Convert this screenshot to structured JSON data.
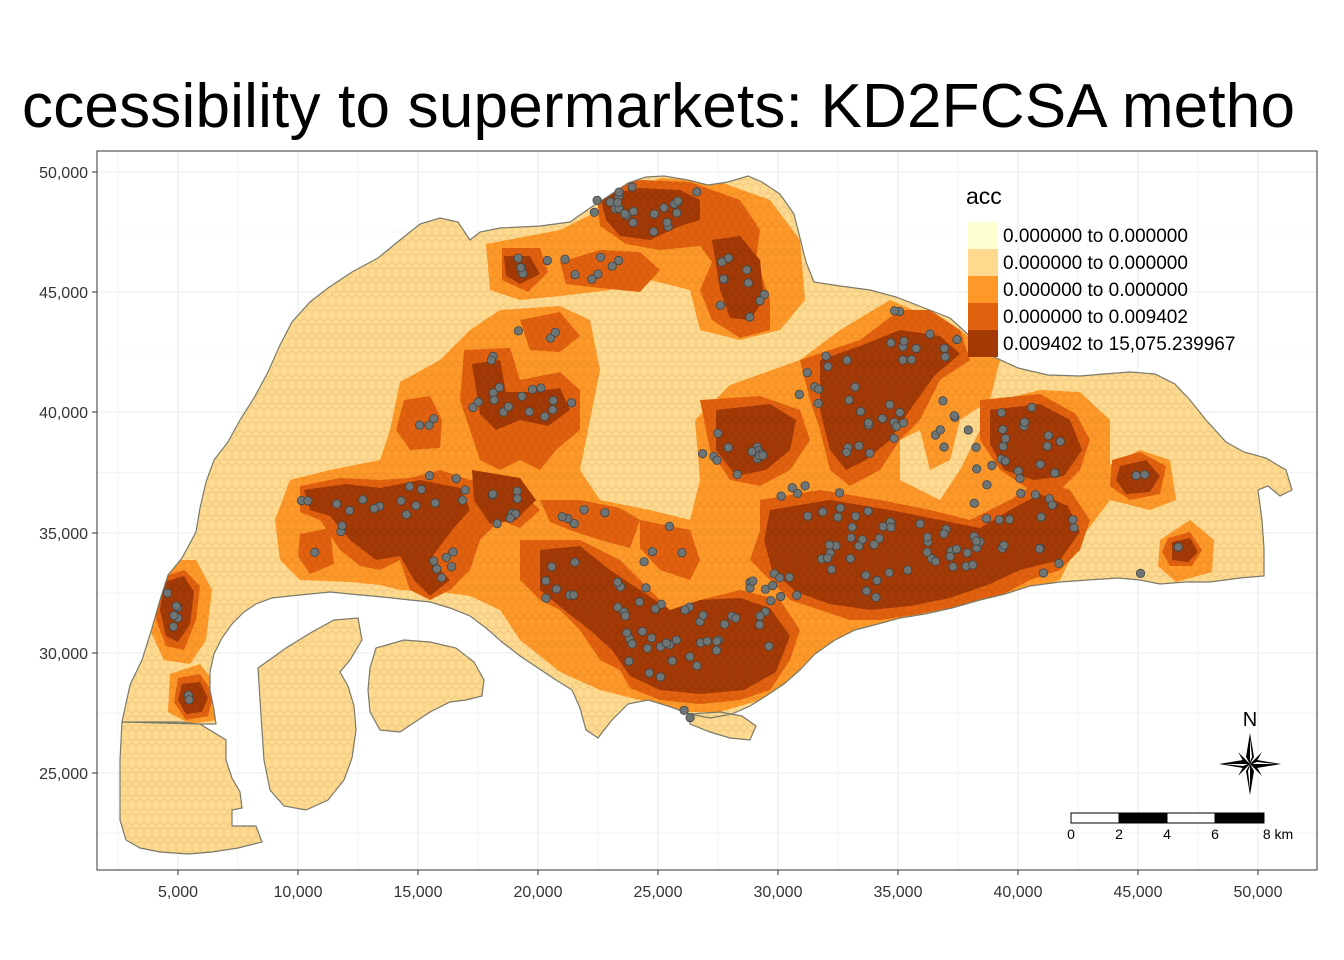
{
  "map": {
    "title": "ccessibility to supermarkets: KD2FCSA metho",
    "x_axis": {
      "ticks": [
        "5,000",
        "10,000",
        "15,000",
        "20,000",
        "25,000",
        "30,000",
        "35,000",
        "40,000",
        "45,000",
        "50,000"
      ]
    },
    "y_axis": {
      "ticks": [
        "25,000",
        "30,000",
        "35,000",
        "40,000",
        "45,000",
        "50,000"
      ]
    },
    "legend": {
      "title": "acc",
      "position": "top-right",
      "classes": [
        {
          "label": "0.000000 to 0.000000",
          "color": "#FFFFD4"
        },
        {
          "label": "0.000000 to 0.000000",
          "color": "#FED98E"
        },
        {
          "label": "0.000000 to 0.000000",
          "color": "#FE9929"
        },
        {
          "label": "0.000000 to 0.009402",
          "color": "#E1610F"
        },
        {
          "label": "0.009402 to 15,075.239967",
          "color": "#A33A06"
        }
      ]
    },
    "scale_bar": {
      "labels": [
        "0",
        "2",
        "4",
        "6",
        "8 km"
      ]
    },
    "compass": {
      "label": "N"
    },
    "colors": {
      "land_outline": "#7a7a6a",
      "grid": "#ebebeb",
      "supermarket_point": "#6f7475"
    },
    "gridlines": true
  }
}
